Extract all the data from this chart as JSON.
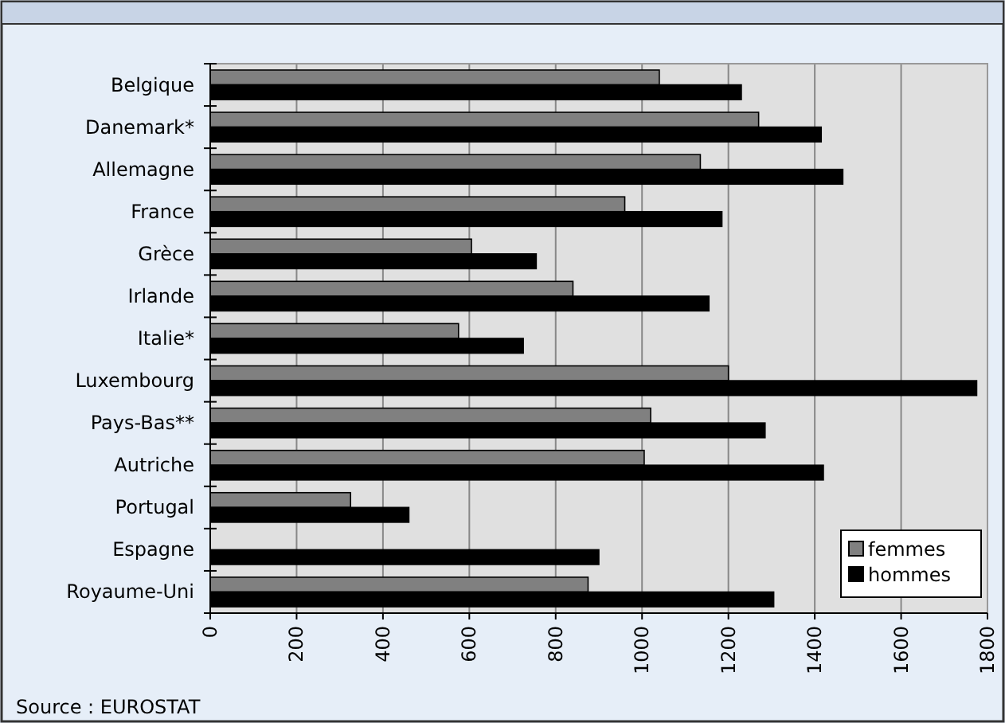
{
  "chart_data": {
    "type": "bar",
    "orientation": "horizontal",
    "categories": [
      "Belgique",
      "Danemark*",
      "Allemagne",
      "France",
      "Grèce",
      "Irlande",
      "Italie*",
      "Luxembourg",
      "Pays-Bas**",
      "Autriche",
      "Portugal",
      "Espagne",
      "Royaume-Uni"
    ],
    "series": [
      {
        "name": "femmes",
        "color": "#808080",
        "values": [
          1040,
          1270,
          1135,
          960,
          605,
          840,
          575,
          1200,
          1020,
          1005,
          325,
          null,
          875
        ]
      },
      {
        "name": "hommes",
        "color": "#000000",
        "values": [
          1230,
          1415,
          1465,
          1185,
          755,
          1155,
          725,
          1775,
          1285,
          1420,
          460,
          900,
          1305
        ]
      }
    ],
    "xlim": [
      0,
      1800
    ],
    "xticks": [
      0,
      200,
      400,
      600,
      800,
      1000,
      1200,
      1400,
      1600,
      1800
    ],
    "grid": "x",
    "legend": "bottom right",
    "annotations": [
      "Source : EUROSTAT"
    ]
  }
}
